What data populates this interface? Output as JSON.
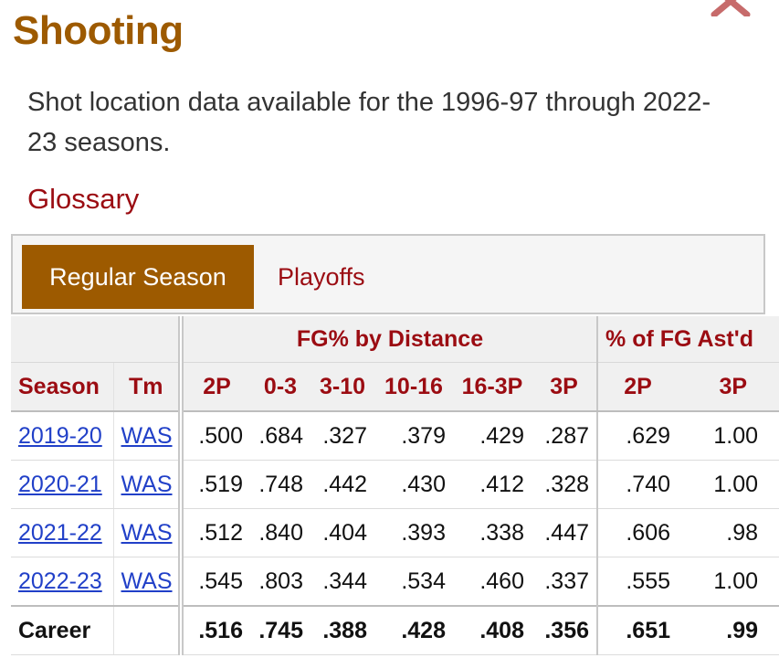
{
  "title": "Shooting",
  "description": "Shot location data available for the 1996-97 through 2022-23 seasons.",
  "glossary_label": "Glossary",
  "icons": {
    "close": "close-icon"
  },
  "colors": {
    "title": "#9d5a00",
    "link_red": "#9b0c12",
    "link_blue": "#2140c8",
    "active_tab": "#9d5a00"
  },
  "tabs": {
    "regular": "Regular Season",
    "playoffs": "Playoffs"
  },
  "table": {
    "over_headers": {
      "fg_by_distance": "FG% by Distance",
      "fg_ast": "% of FG Ast'd"
    },
    "headers": {
      "season": "Season",
      "team": "Tm",
      "p2": "2P",
      "d0_3": "0-3",
      "d3_10": "3-10",
      "d10_16": "10-16",
      "d16_3p": "16-3P",
      "p3": "3P",
      "ast2p": "2P",
      "ast3p": "3P"
    },
    "rows": [
      {
        "season": "2019-20",
        "team": "WAS",
        "p2": ".500",
        "d0_3": ".684",
        "d3_10": ".327",
        "d10_16": ".379",
        "d16_3p": ".429",
        "p3": ".287",
        "ast2p": ".629",
        "ast3p": "1.00"
      },
      {
        "season": "2020-21",
        "team": "WAS",
        "p2": ".519",
        "d0_3": ".748",
        "d3_10": ".442",
        "d10_16": ".430",
        "d16_3p": ".412",
        "p3": ".328",
        "ast2p": ".740",
        "ast3p": "1.00"
      },
      {
        "season": "2021-22",
        "team": "WAS",
        "p2": ".512",
        "d0_3": ".840",
        "d3_10": ".404",
        "d10_16": ".393",
        "d16_3p": ".338",
        "p3": ".447",
        "ast2p": ".606",
        "ast3p": ".98"
      },
      {
        "season": "2022-23",
        "team": "WAS",
        "p2": ".545",
        "d0_3": ".803",
        "d3_10": ".344",
        "d10_16": ".534",
        "d16_3p": ".460",
        "p3": ".337",
        "ast2p": ".555",
        "ast3p": "1.00"
      }
    ],
    "career": {
      "label": "Career",
      "p2": ".516",
      "d0_3": ".745",
      "d3_10": ".388",
      "d10_16": ".428",
      "d16_3p": ".408",
      "p3": ".356",
      "ast2p": ".651",
      "ast3p": ".99"
    }
  }
}
